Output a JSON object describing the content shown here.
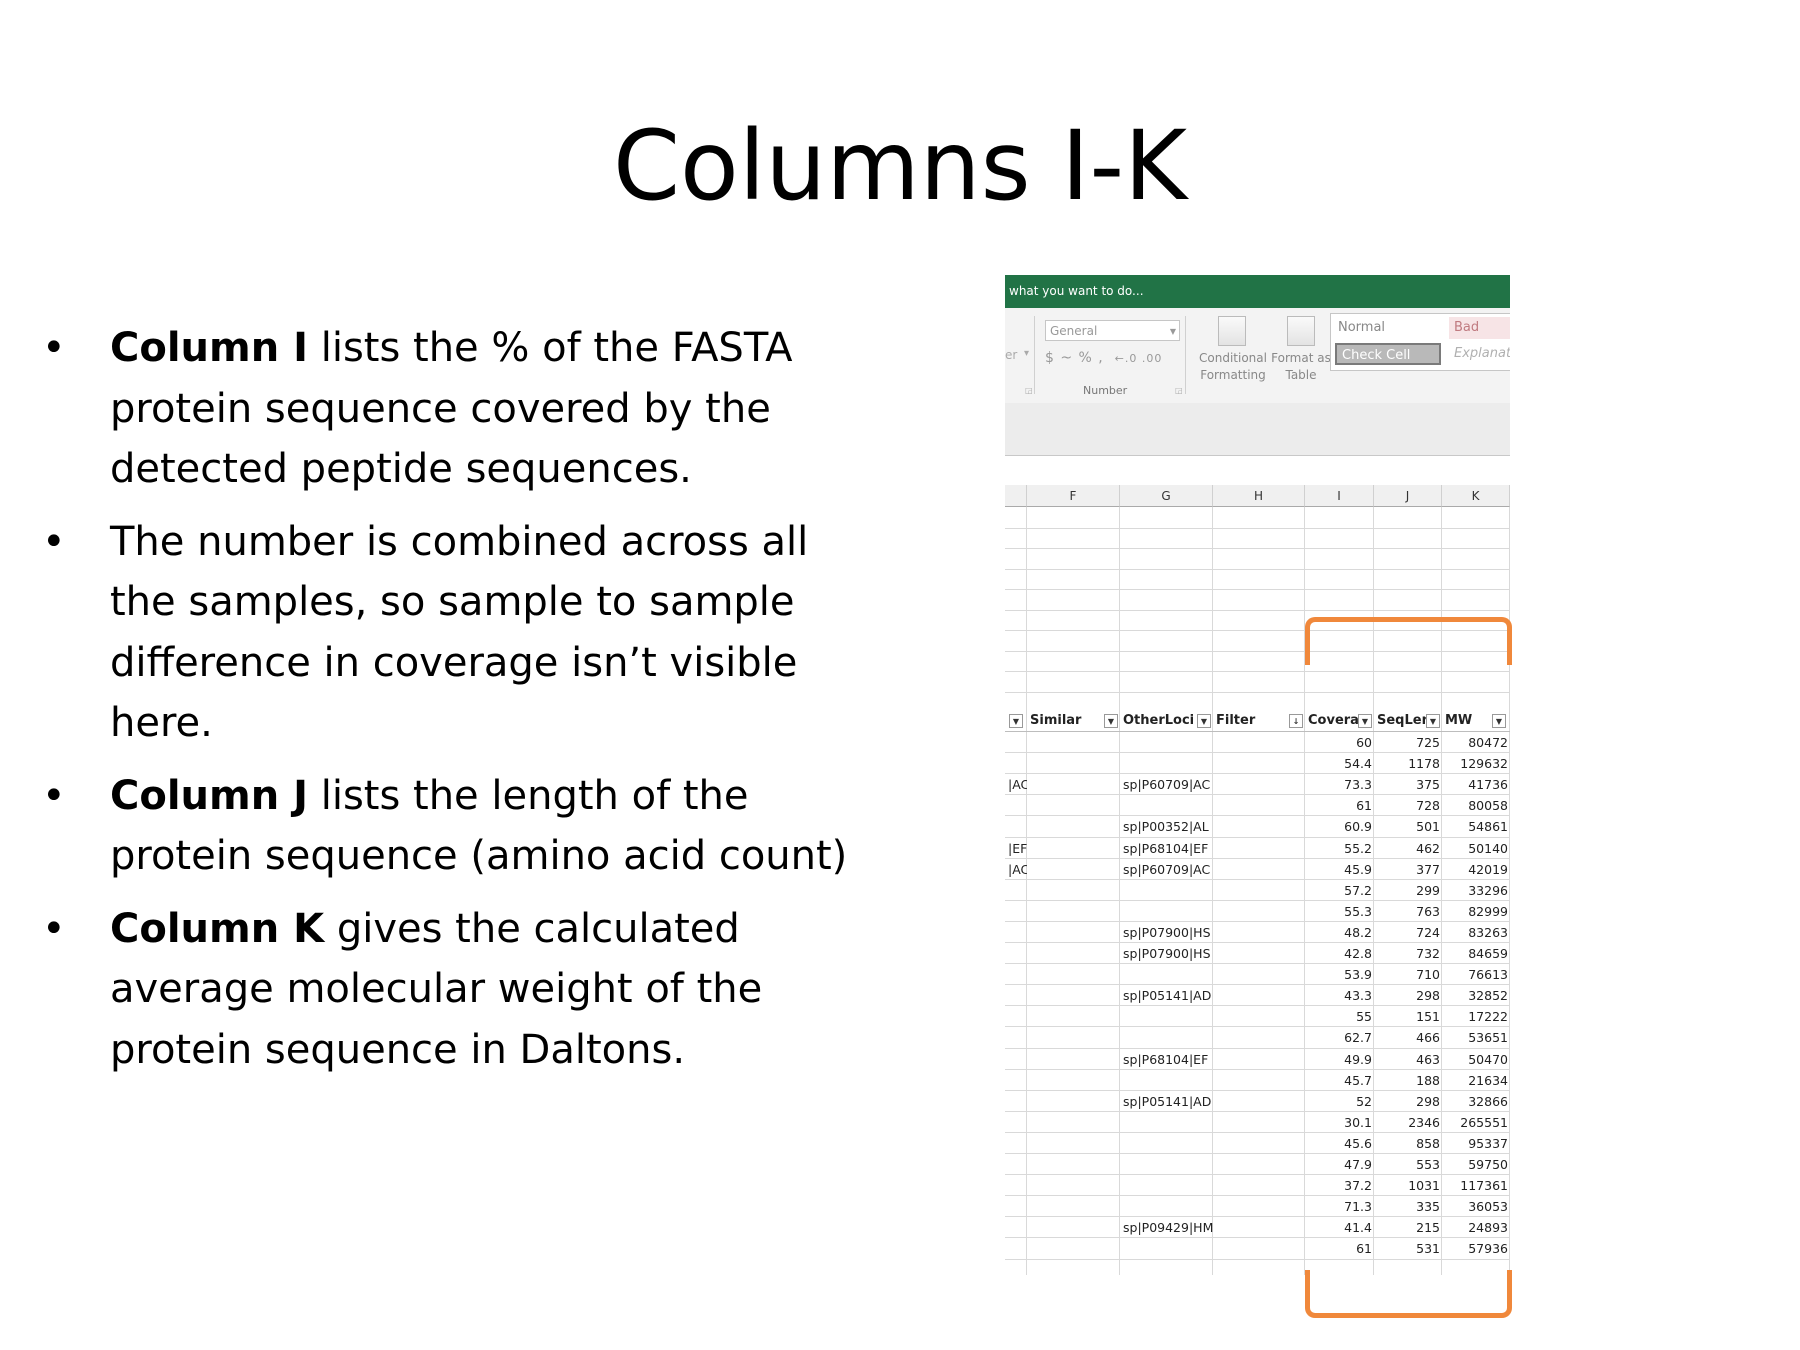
{
  "slide": {
    "title": "Columns I-K",
    "bullets": [
      {
        "bold": "Column I",
        "text": " lists the % of the FASTA protein sequence covered by the detected peptide sequences."
      },
      {
        "bold": "",
        "text": "The number is combined across all the samples, so sample to sample difference in coverage isn’t visible here."
      },
      {
        "bold": "Column J",
        "text": " lists the length of the protein sequence (amino acid count)"
      },
      {
        "bold": "Column K",
        "text": " gives the calculated average molecular weight of the protein sequence in Daltons."
      }
    ]
  },
  "excel": {
    "tell_me": "what you want to do...",
    "number_format": "General",
    "number_symbols": "$ ~ % ,",
    "decimal_icons": "←.0 .00",
    "number_group": "Number",
    "cut_label": "er",
    "conditional_formatting": [
      "Conditional",
      "Formatting"
    ],
    "format_as_table": [
      "Format as",
      "Table"
    ],
    "styles": {
      "normal": "Normal",
      "bad": "Bad",
      "check_cell": "Check Cell",
      "explanatory": "Explanat"
    },
    "columns": [
      "F",
      "G",
      "H",
      "I",
      "J",
      "K"
    ],
    "headers": {
      "similar": "Similar",
      "other_loci": "OtherLoci",
      "filter": "Filter",
      "coverage": "Covera",
      "seqlen": "SeqLen",
      "mw": "MW"
    },
    "rows": [
      {
        "e": "",
        "g": "",
        "i": "60",
        "j": "725",
        "k": "80472"
      },
      {
        "e": "",
        "g": "",
        "i": "54.4",
        "j": "1178",
        "k": "129632"
      },
      {
        "e": "|AC",
        "g": "sp|P60709|AC",
        "i": "73.3",
        "j": "375",
        "k": "41736"
      },
      {
        "e": "",
        "g": "",
        "i": "61",
        "j": "728",
        "k": "80058"
      },
      {
        "e": "",
        "g": "sp|P00352|AL",
        "i": "60.9",
        "j": "501",
        "k": "54861"
      },
      {
        "e": "|EF",
        "g": "sp|P68104|EF",
        "i": "55.2",
        "j": "462",
        "k": "50140"
      },
      {
        "e": "|AC",
        "g": "sp|P60709|AC",
        "i": "45.9",
        "j": "377",
        "k": "42019"
      },
      {
        "e": "",
        "g": "",
        "i": "57.2",
        "j": "299",
        "k": "33296"
      },
      {
        "e": "",
        "g": "",
        "i": "55.3",
        "j": "763",
        "k": "82999"
      },
      {
        "e": "",
        "g": "sp|P07900|HS",
        "i": "48.2",
        "j": "724",
        "k": "83263"
      },
      {
        "e": "",
        "g": "sp|P07900|HS",
        "i": "42.8",
        "j": "732",
        "k": "84659"
      },
      {
        "e": "",
        "g": "",
        "i": "53.9",
        "j": "710",
        "k": "76613"
      },
      {
        "e": "",
        "g": "sp|P05141|AD",
        "i": "43.3",
        "j": "298",
        "k": "32852"
      },
      {
        "e": "",
        "g": "",
        "i": "55",
        "j": "151",
        "k": "17222"
      },
      {
        "e": "",
        "g": "",
        "i": "62.7",
        "j": "466",
        "k": "53651"
      },
      {
        "e": "",
        "g": "sp|P68104|EF",
        "i": "49.9",
        "j": "463",
        "k": "50470"
      },
      {
        "e": "",
        "g": "",
        "i": "45.7",
        "j": "188",
        "k": "21634"
      },
      {
        "e": "",
        "g": "sp|P05141|AD",
        "i": "52",
        "j": "298",
        "k": "32866"
      },
      {
        "e": "",
        "g": "",
        "i": "30.1",
        "j": "2346",
        "k": "265551"
      },
      {
        "e": "",
        "g": "",
        "i": "45.6",
        "j": "858",
        "k": "95337"
      },
      {
        "e": "",
        "g": "",
        "i": "47.9",
        "j": "553",
        "k": "59750"
      },
      {
        "e": "",
        "g": "",
        "i": "37.2",
        "j": "1031",
        "k": "117361"
      },
      {
        "e": "",
        "g": "",
        "i": "71.3",
        "j": "335",
        "k": "36053"
      },
      {
        "e": "",
        "g": "sp|P09429|HM",
        "i": "41.4",
        "j": "215",
        "k": "24893"
      },
      {
        "e": "",
        "g": "",
        "i": "61",
        "j": "531",
        "k": "57936"
      }
    ],
    "accent_color": "#217346",
    "highlight_color": "#f0883b"
  }
}
